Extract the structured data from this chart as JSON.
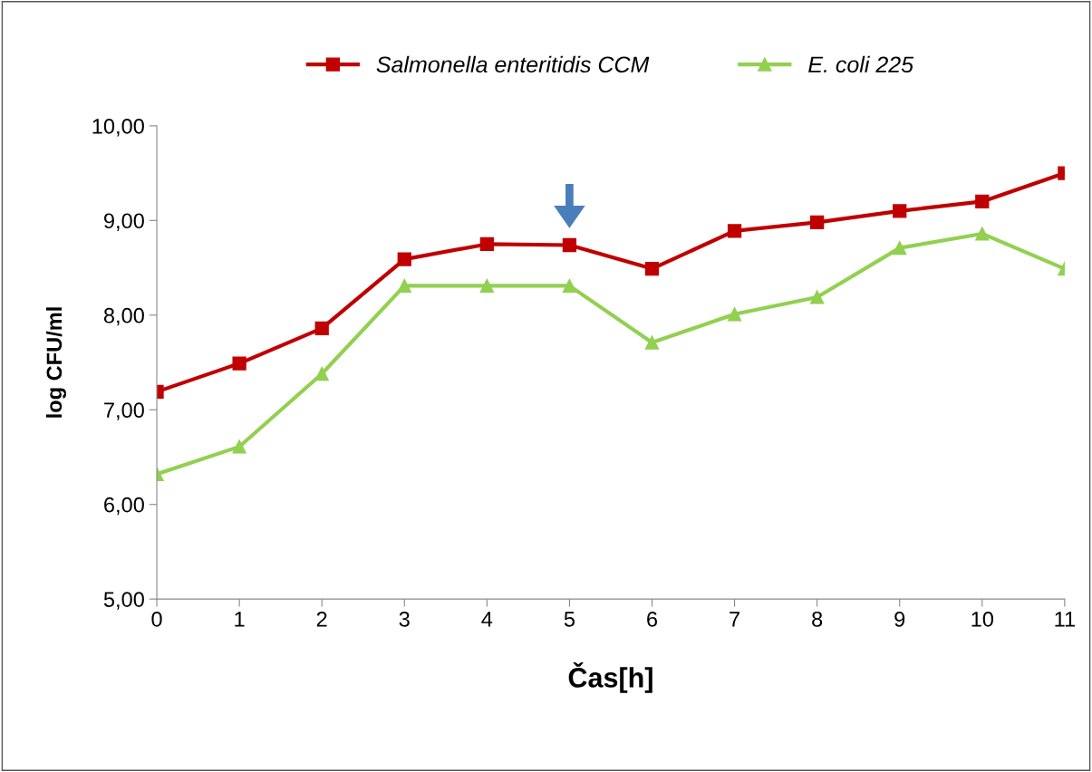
{
  "chart_data": {
    "type": "line",
    "xlabel": "Čas[h]",
    "ylabel": "log CFU/ml",
    "x": [
      0,
      1,
      2,
      3,
      4,
      5,
      6,
      7,
      8,
      9,
      10,
      11
    ],
    "series": [
      {
        "name": "Salmonella enteritidis CCM",
        "color": "#c00000",
        "marker": "square",
        "values": [
          7.19,
          7.49,
          7.86,
          8.59,
          8.75,
          8.74,
          8.49,
          8.89,
          8.98,
          9.1,
          9.2,
          9.5
        ]
      },
      {
        "name": "E. coli 225",
        "color": "#92d050",
        "marker": "triangle",
        "values": [
          6.32,
          6.61,
          7.38,
          8.31,
          8.31,
          8.31,
          7.71,
          8.01,
          8.19,
          8.71,
          8.86,
          8.49
        ]
      }
    ],
    "xlim": [
      0,
      11
    ],
    "xticks": [
      0,
      1,
      2,
      3,
      4,
      5,
      6,
      7,
      8,
      9,
      10,
      11
    ],
    "ylim": [
      5,
      10
    ],
    "yticks": [
      {
        "value": 5,
        "label": "5,00"
      },
      {
        "value": 6,
        "label": "6,00"
      },
      {
        "value": 7,
        "label": "7,00"
      },
      {
        "value": 8,
        "label": "8,00"
      },
      {
        "value": 9,
        "label": "9,00"
      },
      {
        "value": 10,
        "label": "10,00"
      }
    ],
    "legend": "top",
    "line_style": "solid",
    "grid": false
  }
}
